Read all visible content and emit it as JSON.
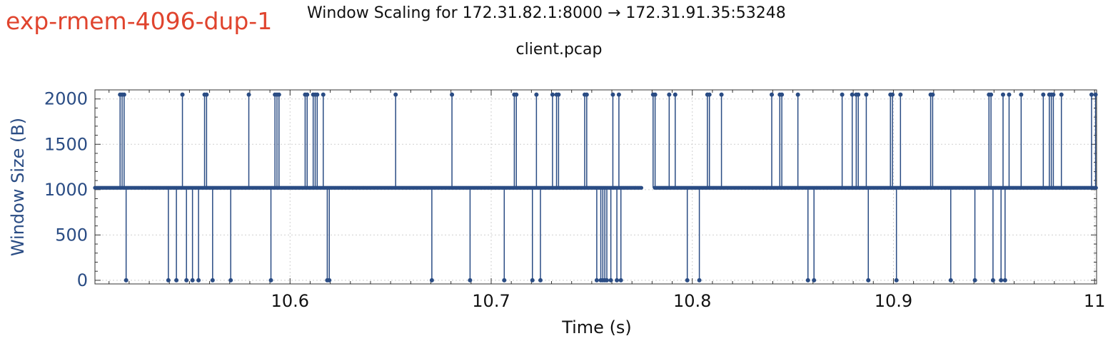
{
  "run_tag": "exp-rmem-4096-dup-1",
  "colors": {
    "tag": "#e0442e",
    "series": "#2a4c84",
    "grid": "#cfcfcf",
    "axis": "#333333"
  },
  "chart_data": {
    "type": "line",
    "title": "Window Scaling for 172.31.82.1:8000 → 172.31.91.35:53248",
    "subtitle": "client.pcap",
    "xlabel": "Time (s)",
    "ylabel": "Window Size (B)",
    "xlim": [
      10.503,
      11.001
    ],
    "ylim": [
      -40,
      2100
    ],
    "x_ticks": [
      10.6,
      10.7,
      10.8,
      10.9,
      11.0
    ],
    "x_tick_labels": [
      "10.6",
      "10.7",
      "10.8",
      "10.9",
      "11"
    ],
    "y_ticks": [
      0,
      500,
      1000,
      1500,
      2000
    ],
    "y_tick_labels": [
      "0",
      "500",
      "1000",
      "1500",
      "2000"
    ],
    "grid": true,
    "step": true,
    "gap": [
      10.775,
      10.781
    ],
    "baseline": 1020,
    "high": 2048,
    "low": 0,
    "spikes_high": [
      10.5155,
      10.5165,
      10.5175,
      10.5465,
      10.5575,
      10.5585,
      10.5795,
      10.5925,
      10.5935,
      10.5945,
      10.6075,
      10.6085,
      10.6115,
      10.6125,
      10.6135,
      10.6165,
      10.6525,
      10.6805,
      10.7115,
      10.7125,
      10.7225,
      10.7305,
      10.7325,
      10.7335,
      10.7465,
      10.7475,
      10.7605,
      10.7635,
      10.7805,
      10.7815,
      10.7885,
      10.7915,
      10.8075,
      10.8085,
      10.8145,
      10.8395,
      10.8435,
      10.8445,
      10.8525,
      10.8745,
      10.8795,
      10.8815,
      10.8825,
      10.8865,
      10.8985,
      10.8995,
      10.9035,
      10.9185,
      10.9195,
      10.9475,
      10.9485,
      10.9545,
      10.9575,
      10.9635,
      10.9745,
      10.9775,
      10.9785,
      10.9795,
      10.9835,
      10.9985,
      11.0005
    ],
    "spikes_low": [
      10.5185,
      10.5395,
      10.5435,
      10.5485,
      10.5515,
      10.5545,
      10.5615,
      10.5705,
      10.5905,
      10.6185,
      10.6195,
      10.6705,
      10.6895,
      10.7065,
      10.7205,
      10.7245,
      10.7525,
      10.7545,
      10.7555,
      10.7565,
      10.7575,
      10.7595,
      10.7625,
      10.7645,
      10.7975,
      10.8035,
      10.8575,
      10.8605,
      10.8875,
      10.9015,
      10.9285,
      10.9405,
      10.9495,
      10.9535,
      10.9555
    ]
  }
}
